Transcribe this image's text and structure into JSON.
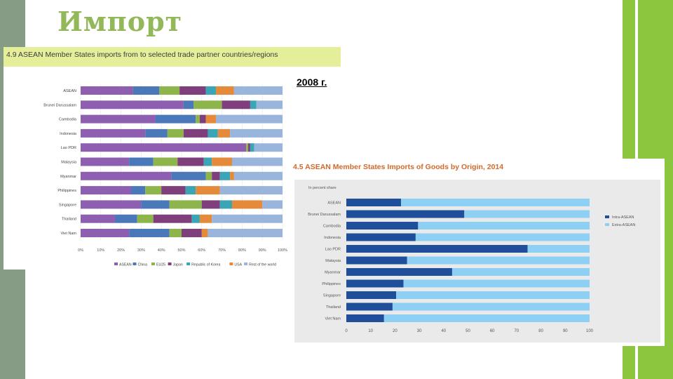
{
  "slide": {
    "title": "Импорт",
    "year_label": "2008 г."
  },
  "colors": {
    "left_bar": "#869c84",
    "right_bar": "#8cc63f",
    "title": "#92b85a"
  },
  "chart_data": [
    {
      "type": "bar",
      "stacked": true,
      "orientation": "horizontal",
      "title": "4.9 ASEAN Member States imports from to selected trade partner countries/regions",
      "categories": [
        "ASEAN",
        "Brunei Darussalam",
        "Cambodia",
        "Indonesia",
        "Lao PDR",
        "Malaysia",
        "Myanmar",
        "Philippines",
        "Singapore",
        "Thailand",
        "Viet Nam"
      ],
      "series": [
        {
          "name": "ASEAN",
          "color": "#8e5fb1",
          "values": [
            26,
            51,
            37,
            32,
            82,
            24,
            45,
            25,
            30,
            17,
            24
          ]
        },
        {
          "name": "China",
          "color": "#4a78b8",
          "values": [
            13,
            5,
            20,
            11,
            0,
            12,
            17,
            7,
            14,
            11,
            20
          ]
        },
        {
          "name": "EU25",
          "color": "#8db54c",
          "values": [
            10,
            14,
            2,
            8,
            1,
            12,
            3,
            8,
            16,
            8,
            6
          ]
        },
        {
          "name": "Japan",
          "color": "#7f3f7c",
          "values": [
            13,
            14,
            3,
            12,
            1,
            13,
            4,
            12,
            9,
            19,
            10
          ]
        },
        {
          "name": "Republic of Korea",
          "color": "#3aa5b5",
          "values": [
            5,
            3,
            0,
            5,
            2,
            4,
            5,
            5,
            6,
            4,
            0
          ]
        },
        {
          "name": "USA",
          "color": "#e48a3a",
          "values": [
            9,
            0,
            5,
            6,
            0,
            10,
            2,
            12,
            15,
            6,
            3
          ]
        },
        {
          "name": "Rest of the world",
          "color": "#9ab5dc",
          "values": [
            24,
            13,
            33,
            26,
            14,
            25,
            24,
            31,
            10,
            35,
            37
          ]
        }
      ],
      "x_ticks": [
        "0%",
        "10%",
        "20%",
        "30%",
        "40%",
        "50%",
        "60%",
        "70%",
        "80%",
        "90%",
        "100%"
      ],
      "xlim": [
        0,
        100
      ]
    },
    {
      "type": "bar",
      "stacked": true,
      "orientation": "horizontal",
      "title": "4.5 ASEAN Member States Imports of Goods by Origin, 2014",
      "subtitle": "In percent share",
      "categories": [
        "ASEAN",
        "Brunei Darussalam",
        "Cambodia",
        "Indonesia",
        "Lao PDR",
        "Malaysia",
        "Myanmar",
        "Philippines",
        "Singapore",
        "Thailand",
        "Viet Nam"
      ],
      "series": [
        {
          "name": "Intra-ASEAN",
          "color": "#1f4e9a",
          "values": [
            22.5,
            48.5,
            29.5,
            28.5,
            74.5,
            25,
            43.5,
            23.5,
            20.5,
            19,
            15.5
          ]
        },
        {
          "name": "Extra-ASEAN",
          "color": "#8ecff4",
          "values": [
            77.5,
            51.5,
            70.5,
            71.5,
            25.5,
            75,
            56.5,
            76.5,
            79.5,
            81,
            84.5
          ]
        }
      ],
      "x_ticks": [
        "0",
        "10",
        "20",
        "30",
        "40",
        "50",
        "60",
        "70",
        "80",
        "90",
        "100"
      ],
      "xlim": [
        0,
        100
      ]
    }
  ]
}
